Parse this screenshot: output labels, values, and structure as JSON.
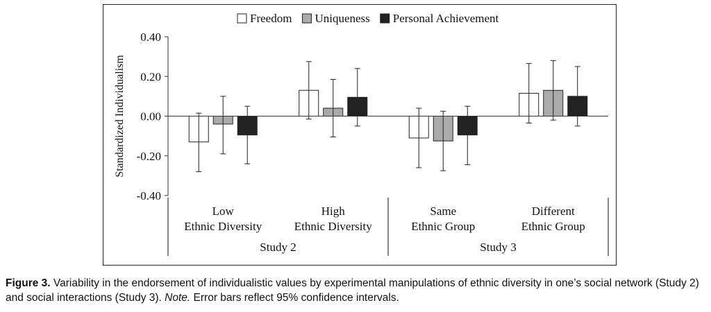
{
  "chart_data": {
    "type": "bar",
    "title": "",
    "ylabel": "Standardized Individualism",
    "ylim": [
      -0.4,
      0.4
    ],
    "yticks": [
      0.4,
      0.2,
      0.0,
      -0.2,
      -0.4
    ],
    "ytick_labels": [
      "0.40",
      "0.20",
      "0.00",
      "-0.20",
      "-0.40"
    ],
    "categories": [
      {
        "line1": "Low",
        "line2": "Ethnic Diversity"
      },
      {
        "line1": "High",
        "line2": "Ethnic Diversity"
      },
      {
        "line1": "Same",
        "line2": "Ethnic Group"
      },
      {
        "line1": "Different",
        "line2": "Ethnic Group"
      }
    ],
    "groups": [
      {
        "label": "Study 2",
        "categories": [
          0,
          1
        ]
      },
      {
        "label": "Study 3",
        "categories": [
          2,
          3
        ]
      }
    ],
    "legend_position": "top",
    "series": [
      {
        "name": "Freedom",
        "color": "#ffffff",
        "values": [
          -0.13,
          0.13,
          -0.11,
          0.115
        ],
        "ci_low": [
          -0.28,
          -0.015,
          -0.26,
          -0.035
        ],
        "ci_high": [
          0.015,
          0.275,
          0.04,
          0.265
        ]
      },
      {
        "name": "Uniqueness",
        "color": "#aaaaaa",
        "values": [
          -0.04,
          0.04,
          -0.125,
          0.13
        ],
        "ci_low": [
          -0.19,
          -0.105,
          -0.275,
          -0.02
        ],
        "ci_high": [
          0.1,
          0.185,
          0.025,
          0.28
        ]
      },
      {
        "name": "Personal Achievement",
        "color": "#222222",
        "values": [
          -0.095,
          0.095,
          -0.095,
          0.1
        ],
        "ci_low": [
          -0.24,
          -0.05,
          -0.245,
          -0.05
        ],
        "ci_high": [
          0.05,
          0.24,
          0.05,
          0.25
        ]
      }
    ]
  },
  "caption": {
    "label": "Figure 3.",
    "text1": " Variability in the endorsement of individualistic values by experimental manipulations of ethnic diversity in one’s social network (Study 2) and social interactions (Study 3). ",
    "note": "Note.",
    "text2": " Error bars reflect 95% confidence intervals."
  }
}
